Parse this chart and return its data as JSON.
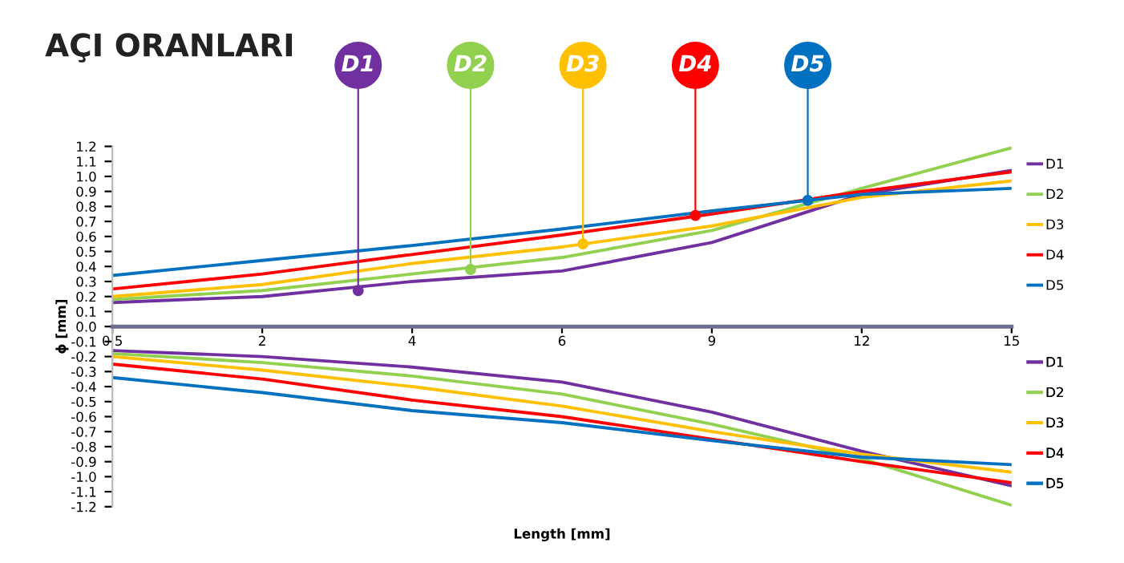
{
  "chart_data": {
    "type": "line",
    "title": "AÇI ORANLARI",
    "xlabel": "Length [mm]",
    "ylabel": "ϕ [mm]",
    "categories": [
      "0.5",
      "2",
      "4",
      "6",
      "9",
      "12",
      "15"
    ],
    "series": [
      {
        "name": "D1",
        "color": "#7030a0",
        "values": [
          0.16,
          0.2,
          0.3,
          0.37,
          0.56,
          0.88,
          1.04
        ]
      },
      {
        "name": "D2",
        "color": "#92d050",
        "values": [
          0.18,
          0.24,
          0.35,
          0.46,
          0.64,
          0.92,
          1.19
        ]
      },
      {
        "name": "D3",
        "color": "#ffc000",
        "values": [
          0.2,
          0.28,
          0.42,
          0.53,
          0.67,
          0.86,
          0.97
        ]
      },
      {
        "name": "D4",
        "color": "#ff0000",
        "values": [
          0.25,
          0.35,
          0.48,
          0.61,
          0.75,
          0.9,
          1.03
        ]
      },
      {
        "name": "D5",
        "color": "#0070c0",
        "values": [
          0.34,
          0.44,
          0.54,
          0.65,
          0.77,
          0.88,
          0.92
        ]
      },
      {
        "name": "D1",
        "color": "#7030a0",
        "values": [
          -0.16,
          -0.2,
          -0.27,
          -0.37,
          -0.57,
          -0.83,
          -1.06
        ]
      },
      {
        "name": "D2",
        "color": "#92d050",
        "values": [
          -0.18,
          -0.24,
          -0.33,
          -0.45,
          -0.65,
          -0.88,
          -1.19
        ]
      },
      {
        "name": "D3",
        "color": "#ffc000",
        "values": [
          -0.2,
          -0.29,
          -0.4,
          -0.53,
          -0.7,
          -0.85,
          -0.97
        ]
      },
      {
        "name": "D4",
        "color": "#ff0000",
        "values": [
          -0.25,
          -0.35,
          -0.49,
          -0.6,
          -0.75,
          -0.9,
          -1.04
        ]
      },
      {
        "name": "D5",
        "color": "#0070c0",
        "values": [
          -0.34,
          -0.44,
          -0.56,
          -0.64,
          -0.76,
          -0.87,
          -0.92
        ]
      }
    ],
    "annotations": [
      {
        "text": "D1",
        "y": 0.24
      },
      {
        "text": "D2",
        "y": 0.38
      },
      {
        "text": "D3",
        "y": 0.55
      },
      {
        "text": "D4",
        "y": 0.74
      },
      {
        "text": "D5",
        "y": 0.84
      }
    ],
    "ylim": [
      -1.2,
      1.2
    ],
    "yticks": [
      -1.2,
      -1.1,
      {
        "value": -1,
        "label": "-1.0"
      },
      -0.9,
      -0.8,
      -0.7,
      -0.6,
      -0.5,
      -0.4,
      -0.3,
      -0.2,
      -0.1,
      {
        "value": 0,
        "label": "0.0"
      },
      0.1,
      0.2,
      0.3,
      0.4,
      0.5,
      0.6,
      0.7,
      0.8,
      0.9,
      {
        "value": 1,
        "label": "1.0"
      },
      1.1,
      1.2
    ],
    "grid": false,
    "legend": "right",
    "marker": "none",
    "line_style": "solid"
  }
}
